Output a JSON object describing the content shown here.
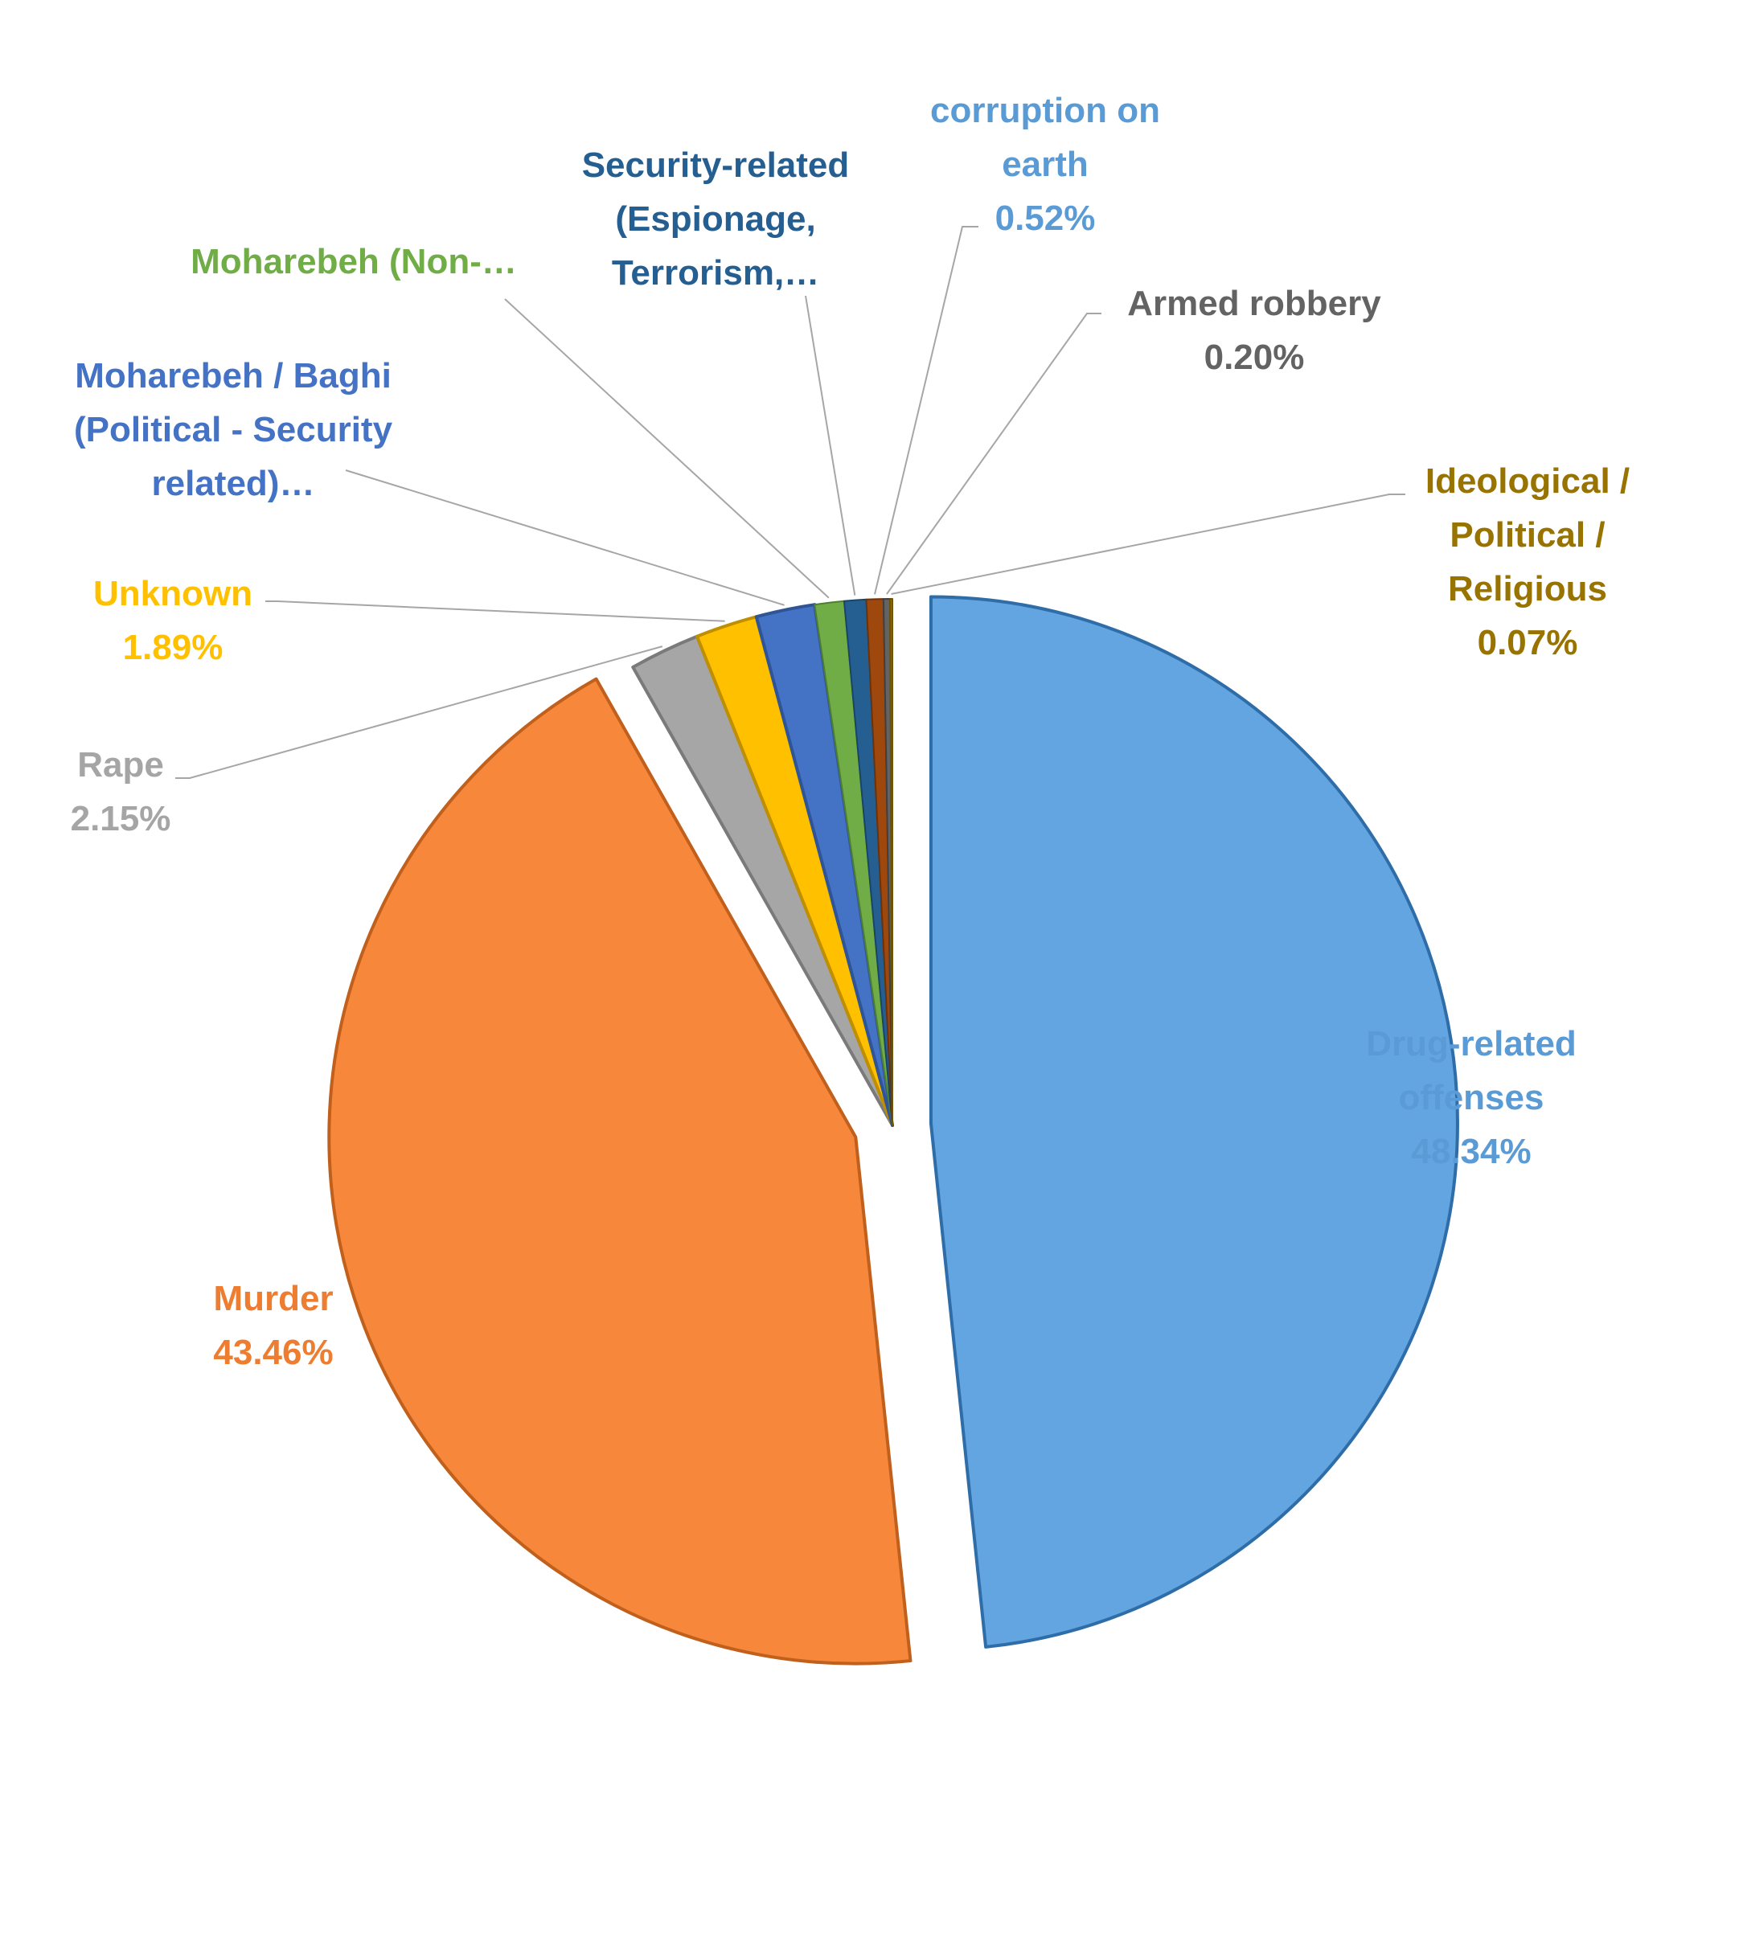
{
  "chart_data": {
    "type": "pie",
    "title": "",
    "start_angle_deg": 0,
    "direction": "clockwise",
    "slices": [
      {
        "label": "Drug-related offenses",
        "value": 48.34,
        "value_label": "48.34%",
        "color": "#63A5E0",
        "edge": "#2E6DA8",
        "exploded": true
      },
      {
        "label": "Murder",
        "value": 43.46,
        "value_label": "43.46%",
        "color": "#F7883B",
        "edge": "#C0601C",
        "exploded": true
      },
      {
        "label": "Rape",
        "value": 2.15,
        "value_label": "2.15%",
        "color": "#A6A6A6",
        "edge": "#7A7A7A"
      },
      {
        "label": "Unknown",
        "value": 1.89,
        "value_label": "1.89%",
        "color": "#FFC000",
        "edge": "#C08F00"
      },
      {
        "label": "Moharebeh / Baghi (Political - Security related)…",
        "value": 1.8,
        "value_label": "",
        "color": "#4472C4",
        "edge": "#2F5597"
      },
      {
        "label": "Moharebeh (Non-…",
        "value": 0.9,
        "value_label": "",
        "color": "#70AD47",
        "edge": "#4E7F31"
      },
      {
        "label": "Security-related (Espionage, Terrorism,…",
        "value": 0.67,
        "value_label": "",
        "color": "#255E91",
        "edge": "#1A4468"
      },
      {
        "label": "corruption on earth",
        "value": 0.52,
        "value_label": "0.52%",
        "color": "#9E480E",
        "edge": "#6E3209"
      },
      {
        "label": "Armed robbery",
        "value": 0.2,
        "value_label": "0.20%",
        "color": "#636363",
        "edge": "#404040"
      },
      {
        "label": "Ideological / Political / Religious",
        "value": 0.07,
        "value_label": "0.07%",
        "color": "#997300",
        "edge": "#6E5300"
      }
    ]
  },
  "labels": {
    "drug_name_1": "Drug-related",
    "drug_name_2": "offenses",
    "drug_value": "48.34%",
    "murder_name": "Murder",
    "murder_value": "43.46%",
    "rape_name": "Rape",
    "rape_value": "2.15%",
    "unknown_name": "Unknown",
    "unknown_value": "1.89%",
    "baghi_1": "Moharebeh / Baghi",
    "baghi_2": "(Political - Security",
    "baghi_3": "related)…",
    "moharebeh_nonpol": "Moharebeh (Non-…",
    "security_1": "Security-related",
    "security_2": "(Espionage,",
    "security_3": "Terrorism,…",
    "corruption_1": "corruption on",
    "corruption_2": "earth",
    "corruption_value": "0.52%",
    "armed_name": "Armed robbery",
    "armed_value": "0.20%",
    "ideo_1": "Ideological /",
    "ideo_2": "Political /",
    "ideo_3": "Religious",
    "ideo_value": "0.07%"
  },
  "colors": {
    "drug": "#5B9BD5",
    "murder": "#ED7D31",
    "rape": "#A5A5A5",
    "unknown": "#FFC000",
    "baghi": "#4472C4",
    "moharebeh": "#70AD47",
    "security": "#255E91",
    "corruption": "#5B9BD5",
    "armed": "#636363",
    "ideo": "#997300",
    "leader": "#A6A6A6"
  }
}
